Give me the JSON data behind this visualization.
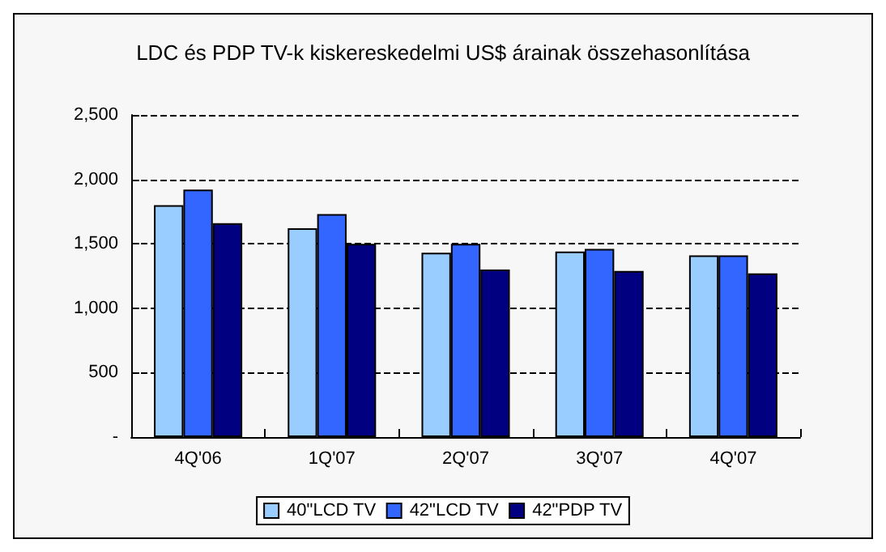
{
  "chart_data": {
    "type": "bar",
    "title": "LDC és PDP TV-k kiskereskedelmi US$ árainak összehasonlítása",
    "categories": [
      "4Q'06",
      "1Q'07",
      "2Q'07",
      "3Q'07",
      "4Q'07"
    ],
    "series": [
      {
        "name": "40\"LCD TV",
        "color": "#99ccff",
        "values": [
          1800,
          1620,
          1430,
          1440,
          1410
        ]
      },
      {
        "name": "42\"LCD TV",
        "color": "#3366ff",
        "values": [
          1920,
          1730,
          1500,
          1460,
          1410
        ]
      },
      {
        "name": "42\"PDP TV",
        "color": "#000080",
        "values": [
          1660,
          1500,
          1300,
          1290,
          1270
        ]
      }
    ],
    "ylim": [
      0,
      2500
    ],
    "yticks": [
      {
        "value": 0,
        "label": "-"
      },
      500,
      {
        "value": 1000,
        "label": "1,000"
      },
      {
        "value": 1500,
        "label": "1,500"
      },
      {
        "value": 2000,
        "label": "2,000"
      },
      {
        "value": 2500,
        "label": "2,500"
      }
    ],
    "grid": "y",
    "line_style": "dashed",
    "legend": "bottom"
  }
}
